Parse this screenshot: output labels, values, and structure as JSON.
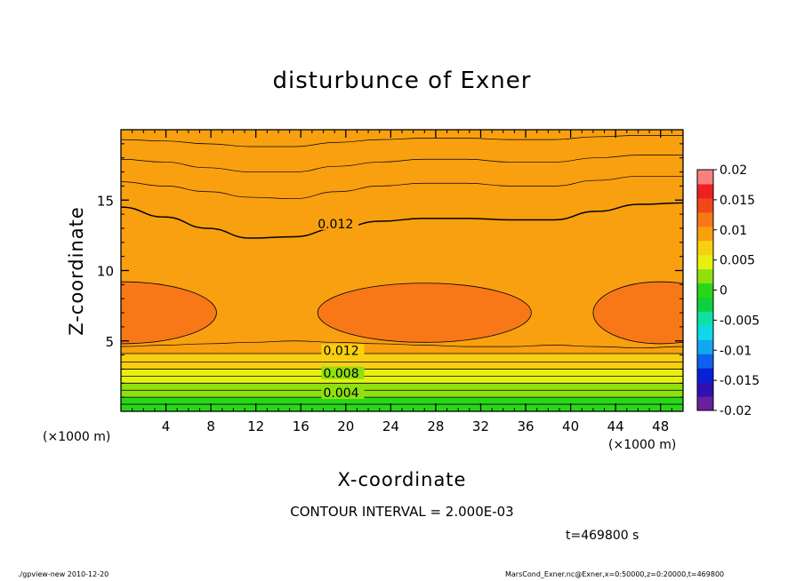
{
  "chart_data": {
    "type": "heatmap",
    "title": "disturbunce of Exner",
    "xlabel": "X-coordinate",
    "ylabel": "Z-coordinate",
    "x_unit": "(×1000 m)",
    "xlim": [
      0,
      50
    ],
    "ylim": [
      0,
      20
    ],
    "x_ticks": [
      4,
      8,
      12,
      16,
      20,
      24,
      28,
      32,
      36,
      40,
      44,
      48
    ],
    "y_ticks": [
      5,
      10,
      15
    ],
    "contour_interval": "CONTOUR INTERVAL = 2.000E-03",
    "contour_labels": [
      {
        "text": "0.012",
        "x": 17.5,
        "z": 13.2
      },
      {
        "text": "0.012",
        "x": 18,
        "z": 4.2
      },
      {
        "text": "0.008",
        "x": 18,
        "z": 2.6
      },
      {
        "text": "0.004",
        "x": 18,
        "z": 1.2
      }
    ],
    "colorbar": {
      "labels": [
        "0.02",
        "0.015",
        "0.01",
        "0.005",
        "0",
        "-0.005",
        "-0.01",
        "-0.015",
        "-0.02"
      ],
      "levels": [
        -0.02,
        -0.0175,
        -0.015,
        -0.0125,
        -0.01,
        -0.0075,
        -0.005,
        -0.0025,
        0,
        0.0025,
        0.005,
        0.0075,
        0.01,
        0.0125,
        0.015,
        0.0175,
        0.02
      ],
      "colors": [
        "#6a1fa0",
        "#3010b0",
        "#0820d8",
        "#1060f0",
        "#10a8f0",
        "#10d8e8",
        "#10e0a8",
        "#10d040",
        "#28d818",
        "#90e010",
        "#e8f010",
        "#f8d010",
        "#f8a010",
        "#f87818",
        "#f04818",
        "#f02020",
        "#f88080"
      ]
    },
    "field": {
      "horizontal_bands": [
        {
          "z0": 0.0,
          "z1": 0.5,
          "value": 0.001
        },
        {
          "z0": 0.5,
          "z1": 1.0,
          "value": 0.002
        },
        {
          "z0": 1.0,
          "z1": 1.5,
          "value": 0.003
        },
        {
          "z0": 1.5,
          "z1": 2.0,
          "value": 0.004
        },
        {
          "z0": 2.0,
          "z1": 2.5,
          "value": 0.005
        },
        {
          "z0": 2.5,
          "z1": 3.0,
          "value": 0.0065
        },
        {
          "z0": 3.0,
          "z1": 3.5,
          "value": 0.008
        },
        {
          "z0": 3.5,
          "z1": 4.1,
          "value": 0.0095
        }
      ],
      "level_curves": [
        {
          "value": 0.0125,
          "z": [
            4.6,
            4.7,
            4.8,
            4.9,
            5.0,
            4.9,
            4.8,
            4.7,
            4.6,
            4.6,
            4.7,
            4.6,
            4.5,
            4.6
          ]
        },
        {
          "value": 0.012,
          "z": [
            14.5,
            13.8,
            13.0,
            12.3,
            12.4,
            13.0,
            13.5,
            13.7,
            13.7,
            13.6,
            13.6,
            14.2,
            14.7,
            14.8
          ]
        },
        {
          "value": 0.0115,
          "z": [
            16.3,
            16.0,
            15.6,
            15.2,
            15.1,
            15.6,
            16.0,
            16.2,
            16.2,
            16.0,
            16.0,
            16.4,
            16.7,
            16.7
          ]
        },
        {
          "value": 0.011,
          "z": [
            17.9,
            17.7,
            17.3,
            17.0,
            17.0,
            17.4,
            17.7,
            17.9,
            17.9,
            17.7,
            17.7,
            18.0,
            18.2,
            18.2
          ]
        },
        {
          "value": 0.0105,
          "z": [
            19.3,
            19.2,
            19.0,
            18.8,
            18.8,
            19.1,
            19.3,
            19.4,
            19.4,
            19.3,
            19.3,
            19.5,
            19.6,
            19.6
          ]
        }
      ],
      "maxima": [
        {
          "x": 0,
          "z": 7.0,
          "half_width": 8.5,
          "half_height": 2.2,
          "value": 0.0145
        },
        {
          "x": 27,
          "z": 7.0,
          "half_width": 9.5,
          "half_height": 2.1,
          "value": 0.0145
        },
        {
          "x": 48,
          "z": 7.0,
          "half_width": 6.0,
          "half_height": 2.2,
          "value": 0.0145
        }
      ]
    }
  },
  "time_label": "t=469800 s",
  "footer_left": "./gpview-new   2010-12-20",
  "footer_right": "MarsCond_Exner.nc@Exner,x=0:50000,z=0:20000,t=469800"
}
